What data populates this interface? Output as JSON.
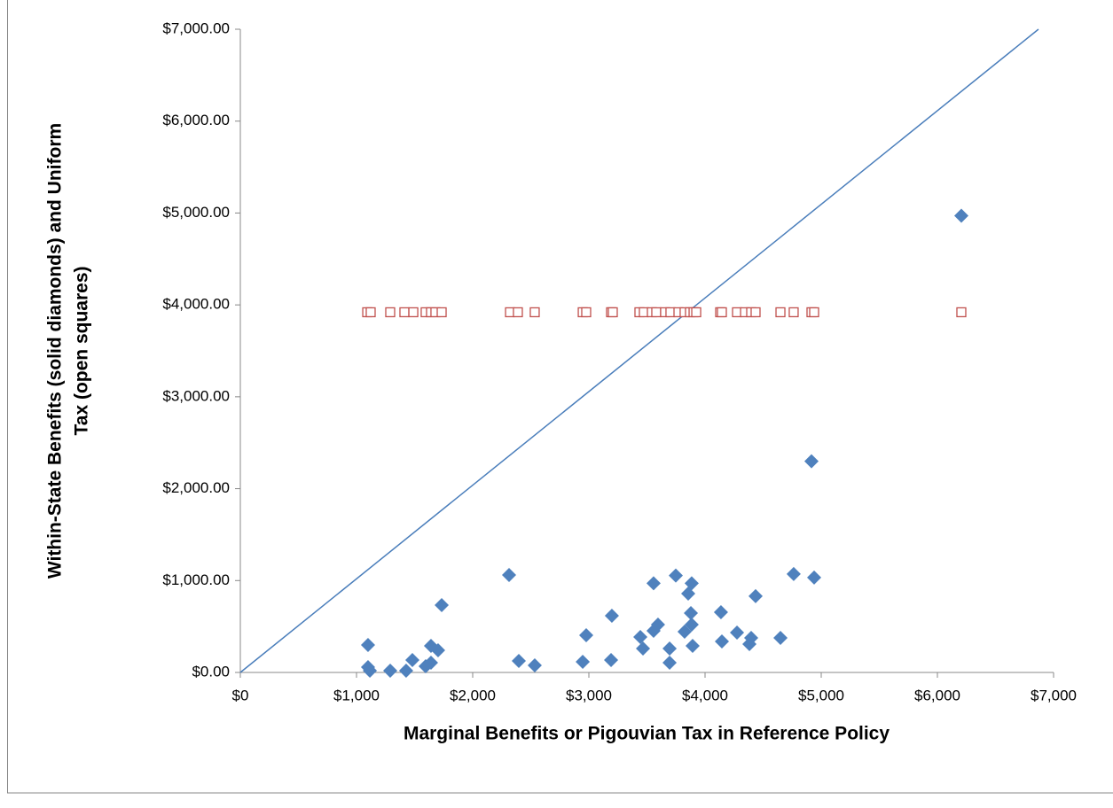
{
  "chart_data": {
    "type": "scatter",
    "x_label": "Marginal Benefits or Pigouvian Tax in Reference Policy",
    "y_label": [
      "Within-State Benefits (solid diamonds) and Uniform",
      "Tax (open squares)"
    ],
    "xlim": [
      0,
      7000
    ],
    "ylim": [
      0,
      7000
    ],
    "xticks": [
      {
        "value": 0,
        "label": "$0"
      },
      {
        "value": 1000,
        "label": "$1,000"
      },
      {
        "value": 2000,
        "label": "$2,000"
      },
      {
        "value": 3000,
        "label": "$3,000"
      },
      {
        "value": 4000,
        "label": "$4,000"
      },
      {
        "value": 5000,
        "label": "$5,000"
      },
      {
        "value": 6000,
        "label": "$6,000"
      },
      {
        "value": 7000,
        "label": "$7,000"
      }
    ],
    "yticks": [
      {
        "value": 0,
        "label": "$0.00"
      },
      {
        "value": 1000,
        "label": "$1,000.00"
      },
      {
        "value": 2000,
        "label": "$2,000.00"
      },
      {
        "value": 3000,
        "label": "$3,000.00"
      },
      {
        "value": 4000,
        "label": "$4,000.00"
      },
      {
        "value": 5000,
        "label": "$5,000.00"
      },
      {
        "value": 6000,
        "label": "$6,000.00"
      },
      {
        "value": 7000,
        "label": "$7,000.00"
      }
    ],
    "grid": false,
    "series": [
      {
        "marker": "diamond",
        "color": "#4f81bd",
        "x": [
          1099,
          1099,
          1115,
          1290,
          1427,
          1481,
          1595,
          1641,
          1641,
          1702,
          1733,
          2313,
          2397,
          2534,
          2947,
          2977,
          3191,
          3198,
          3443,
          3466,
          3557,
          3595,
          3557,
          3695,
          3695,
          3748,
          3855,
          3878,
          3885,
          3824,
          3893,
          3885,
          4137,
          4145,
          4275,
          4382,
          4397,
          4435,
          4649,
          4763,
          4916,
          4939,
          6206
        ],
        "values": [
          299,
          58,
          19,
          19,
          19,
          135,
          68,
          106,
          289,
          241,
          733,
          1061,
          125,
          77,
          116,
          405,
          135,
          617,
          386,
          260,
          453,
          521,
          970,
          106,
          260,
          1055,
          858,
          646,
          521,
          444,
          289,
          970,
          656,
          338,
          434,
          309,
          376,
          830,
          376,
          1071,
          2298,
          1033,
          4970
        ]
      },
      {
        "marker": "square-open",
        "color": "#c0504d",
        "x": [
          1092,
          1122,
          1290,
          1412,
          1489,
          1595,
          1641,
          1679,
          1733,
          2321,
          2389,
          2534,
          2947,
          2977,
          3191,
          3206,
          3435,
          3473,
          3542,
          3580,
          3656,
          3702,
          3771,
          3824,
          3870,
          3901,
          3924,
          4130,
          4145,
          4275,
          4344,
          4397,
          4435,
          4649,
          4763,
          4916,
          4939,
          6206
        ],
        "values": [
          3920,
          3920,
          3920,
          3920,
          3920,
          3920,
          3920,
          3920,
          3920,
          3920,
          3920,
          3920,
          3920,
          3920,
          3920,
          3920,
          3920,
          3920,
          3920,
          3920,
          3920,
          3920,
          3920,
          3920,
          3920,
          3920,
          3920,
          3920,
          3920,
          3920,
          3920,
          3920,
          3920,
          3920,
          3920,
          3920,
          3920,
          3920
        ]
      },
      {
        "marker": "line",
        "color": "#4a7ebb",
        "x": [
          0,
          6870
        ],
        "values": [
          0,
          7000
        ]
      }
    ]
  }
}
